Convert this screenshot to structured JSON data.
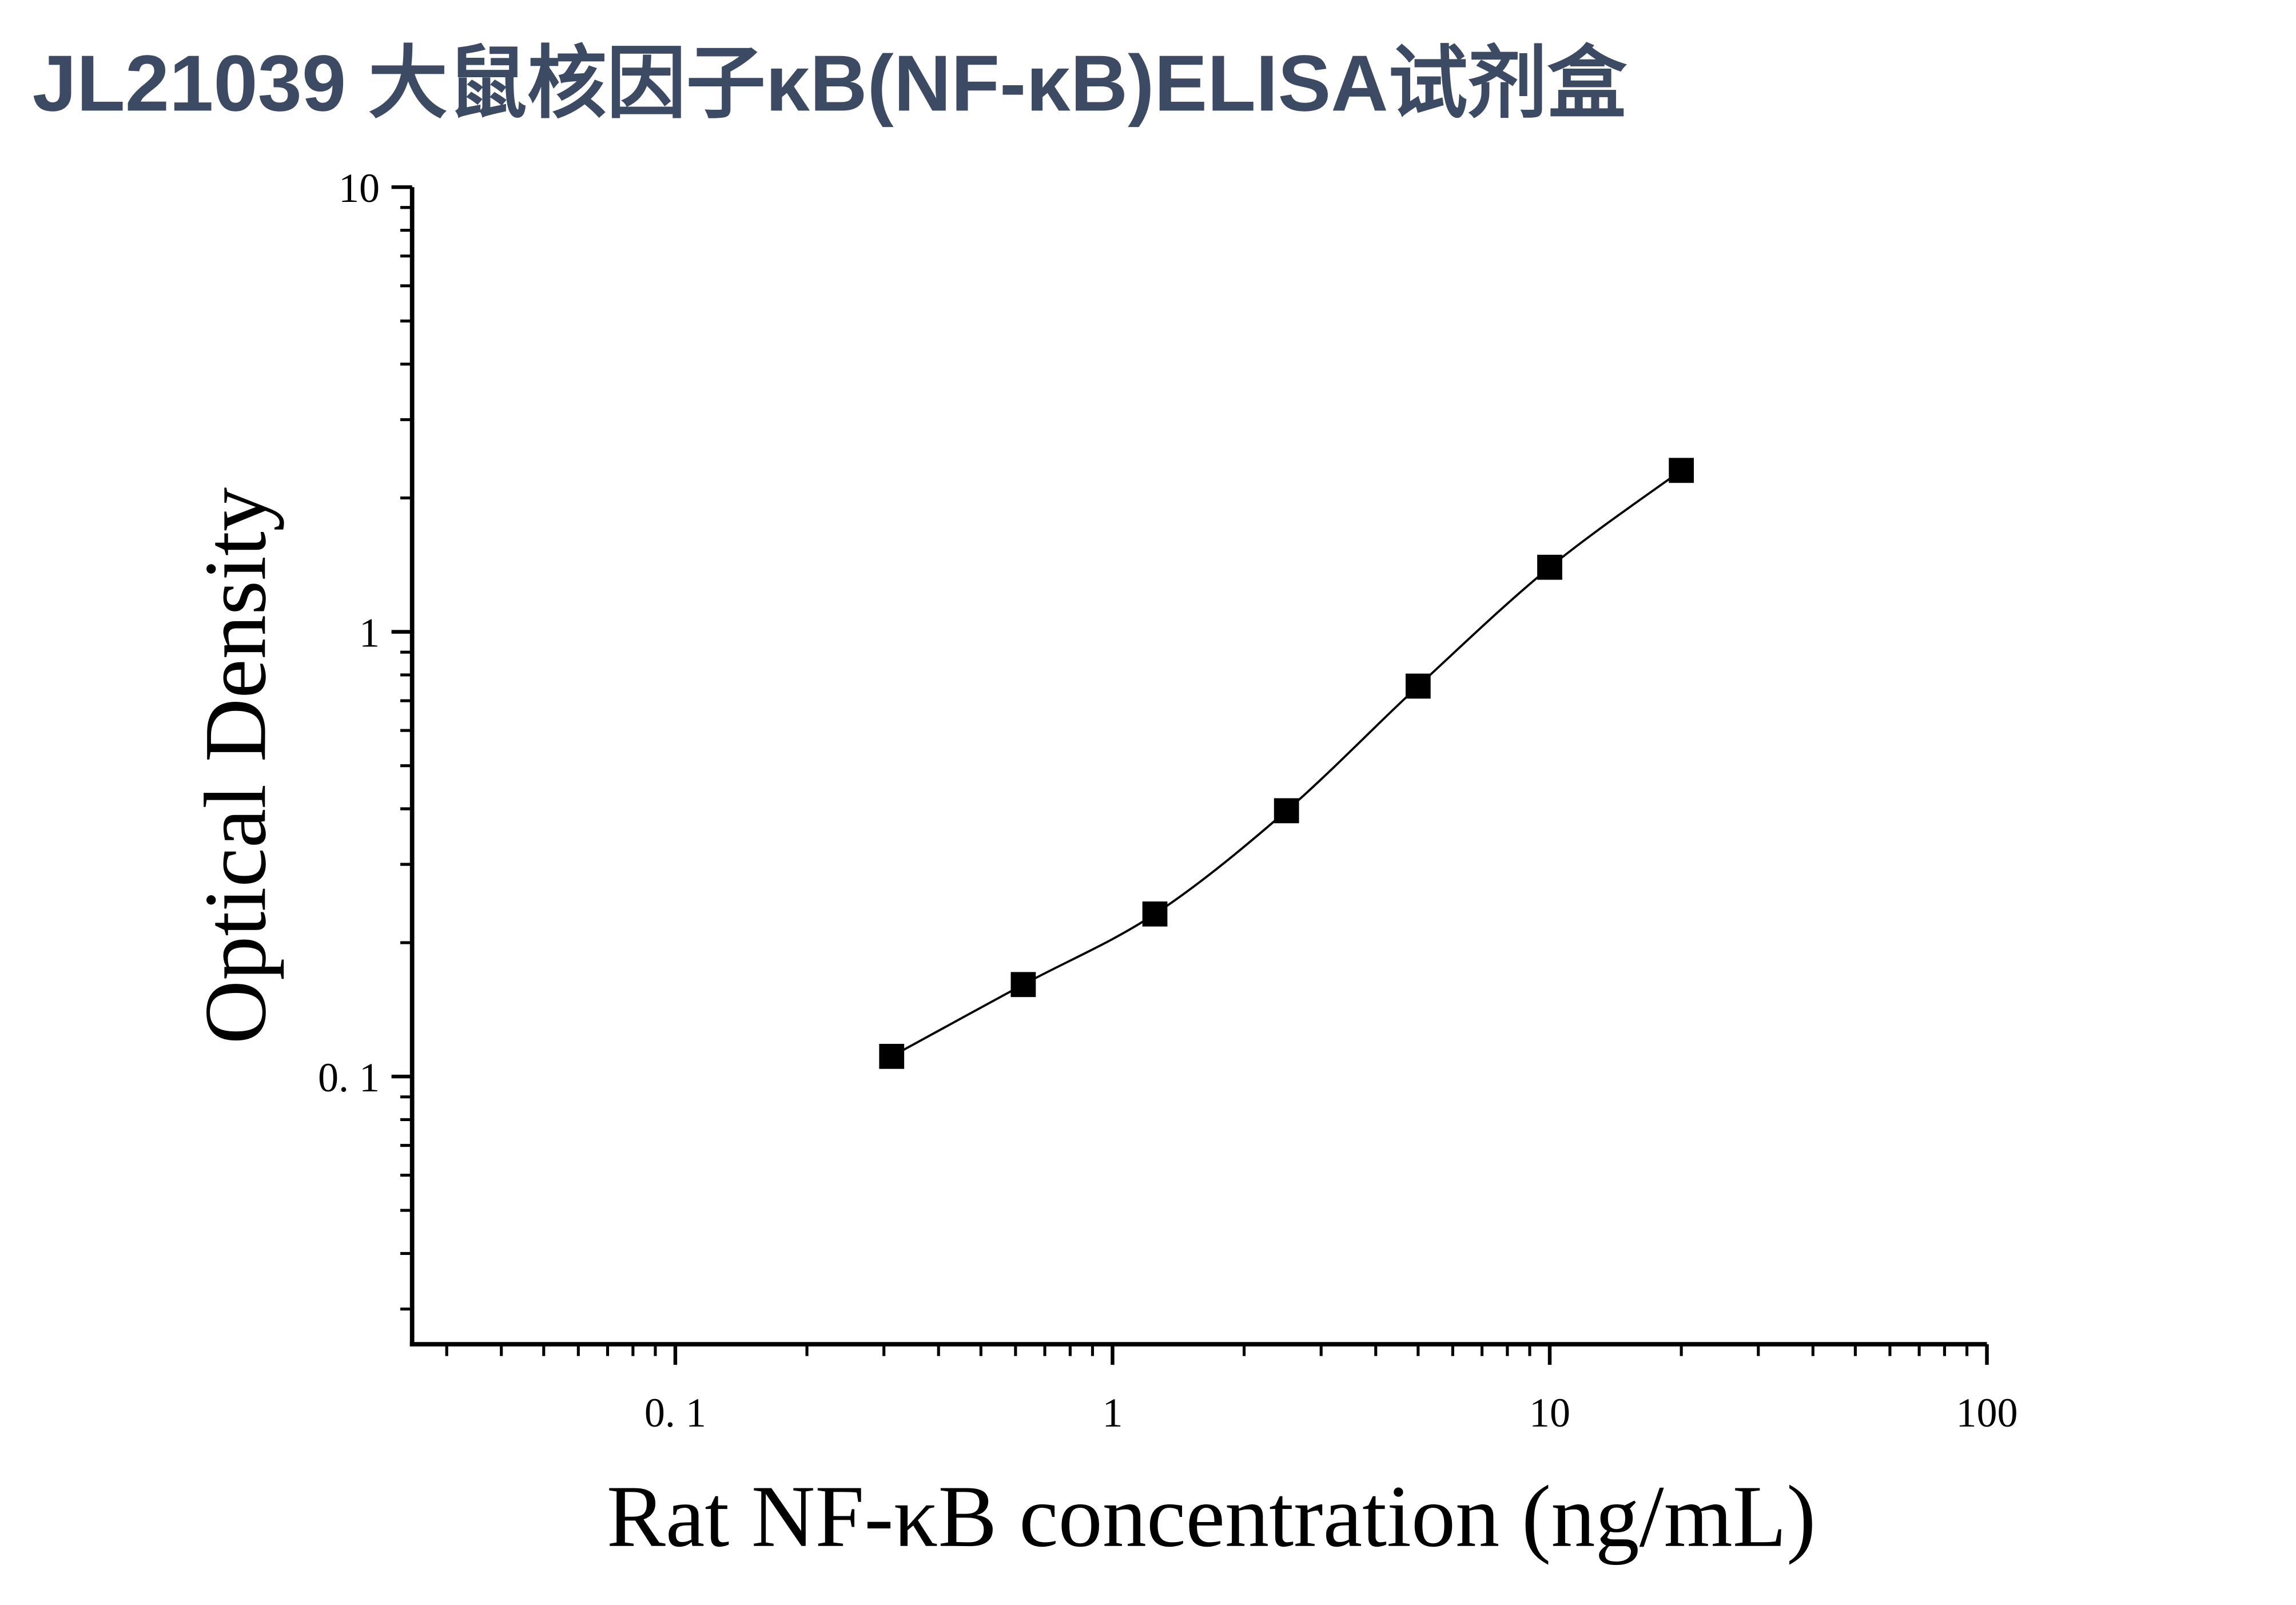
{
  "chart_data": {
    "type": "scatter",
    "title": "JL21039 大鼠核因子κB(NF-κB)ELISA试剂盒",
    "x_label": "Rat NF-κB concentration (ng/mL)",
    "y_label": "Optical Density",
    "x_scale": "log",
    "y_scale": "log",
    "xlim": [
      0.025,
      100
    ],
    "ylim": [
      0.025,
      10
    ],
    "xticks": [
      {
        "value": 0.1,
        "label": "0. 1"
      },
      1,
      10,
      100
    ],
    "yticks": [
      {
        "value": 0.1,
        "label": "0. 1"
      },
      1,
      10
    ],
    "minor_ticks": true,
    "fit_curve": true,
    "color": "#000000",
    "x": [
      0.3125,
      0.625,
      1.25,
      2.5,
      5,
      10,
      20
    ],
    "values": [
      0.111,
      0.161,
      0.232,
      0.396,
      0.755,
      1.397,
      2.307
    ]
  }
}
